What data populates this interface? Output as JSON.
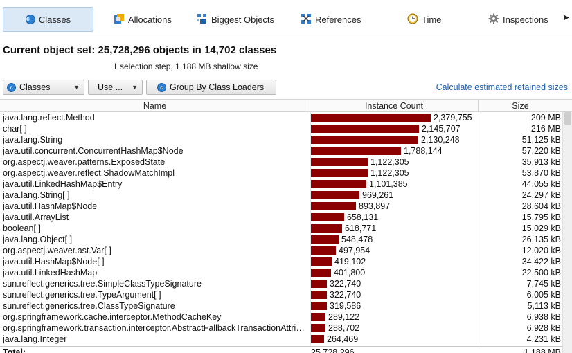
{
  "tabs": [
    {
      "label": "Classes",
      "icon": "classes-icon"
    },
    {
      "label": "Allocations",
      "icon": "allocations-icon"
    },
    {
      "label": "Biggest Objects",
      "icon": "biggest-objects-icon"
    },
    {
      "label": "References",
      "icon": "references-icon"
    },
    {
      "label": "Time",
      "icon": "time-icon"
    },
    {
      "label": "Inspections",
      "icon": "inspections-icon"
    }
  ],
  "header": {
    "title": "Current object set:  25,728,296 objects in 14,702 classes",
    "subtitle": "1 selection step, 1,188 MB shallow size"
  },
  "controls": {
    "view_select": "Classes",
    "use_button": "Use ...",
    "group_button": "Group By Class Loaders",
    "calc_link": "Calculate estimated retained sizes"
  },
  "table": {
    "columns": [
      "Name",
      "Instance Count",
      "Size"
    ],
    "max_count": 2379755,
    "rows": [
      {
        "name": "java.lang.reflect.Method",
        "count": 2379755,
        "count_label": "2,379,755",
        "size": "209 MB"
      },
      {
        "name": "char[ ]",
        "count": 2145707,
        "count_label": "2,145,707",
        "size": "216 MB"
      },
      {
        "name": "java.lang.String",
        "count": 2130248,
        "count_label": "2,130,248",
        "size": "51,125 kB"
      },
      {
        "name": "java.util.concurrent.ConcurrentHashMap$Node",
        "count": 1788144,
        "count_label": "1,788,144",
        "size": "57,220 kB"
      },
      {
        "name": "org.aspectj.weaver.patterns.ExposedState",
        "count": 1122305,
        "count_label": "1,122,305",
        "size": "35,913 kB"
      },
      {
        "name": "org.aspectj.weaver.reflect.ShadowMatchImpl",
        "count": 1122305,
        "count_label": "1,122,305",
        "size": "53,870 kB"
      },
      {
        "name": "java.util.LinkedHashMap$Entry",
        "count": 1101385,
        "count_label": "1,101,385",
        "size": "44,055 kB"
      },
      {
        "name": "java.lang.String[ ]",
        "count": 969261,
        "count_label": "969,261",
        "size": "24,297 kB"
      },
      {
        "name": "java.util.HashMap$Node",
        "count": 893897,
        "count_label": "893,897",
        "size": "28,604 kB"
      },
      {
        "name": "java.util.ArrayList",
        "count": 658131,
        "count_label": "658,131",
        "size": "15,795 kB"
      },
      {
        "name": "boolean[ ]",
        "count": 618771,
        "count_label": "618,771",
        "size": "15,029 kB"
      },
      {
        "name": "java.lang.Object[ ]",
        "count": 548478,
        "count_label": "548,478",
        "size": "26,135 kB"
      },
      {
        "name": "org.aspectj.weaver.ast.Var[ ]",
        "count": 497954,
        "count_label": "497,954",
        "size": "12,020 kB"
      },
      {
        "name": "java.util.HashMap$Node[ ]",
        "count": 419102,
        "count_label": "419,102",
        "size": "34,422 kB"
      },
      {
        "name": "java.util.LinkedHashMap",
        "count": 401800,
        "count_label": "401,800",
        "size": "22,500 kB"
      },
      {
        "name": "sun.reflect.generics.tree.SimpleClassTypeSignature",
        "count": 322740,
        "count_label": "322,740",
        "size": "7,745 kB"
      },
      {
        "name": "sun.reflect.generics.tree.TypeArgument[ ]",
        "count": 322740,
        "count_label": "322,740",
        "size": "6,005 kB"
      },
      {
        "name": "sun.reflect.generics.tree.ClassTypeSignature",
        "count": 319586,
        "count_label": "319,586",
        "size": "5,113 kB"
      },
      {
        "name": "org.springframework.cache.interceptor.MethodCacheKey",
        "count": 289122,
        "count_label": "289,122",
        "size": "6,938 kB"
      },
      {
        "name": "org.springframework.transaction.interceptor.AbstractFallbackTransactionAttributeSource$DefaultCacheKey",
        "count": 288702,
        "count_label": "288,702",
        "size": "6,928 kB"
      },
      {
        "name": "java.lang.Integer",
        "count": 264469,
        "count_label": "264,469",
        "size": "4,231 kB"
      }
    ],
    "total": {
      "label": "Total:",
      "count": "25,728,296",
      "size": "1,188 MB"
    }
  },
  "colors": {
    "bar": "#8b0000",
    "accent": "#1a5fb4",
    "active_tab": "#dbe8f5"
  }
}
